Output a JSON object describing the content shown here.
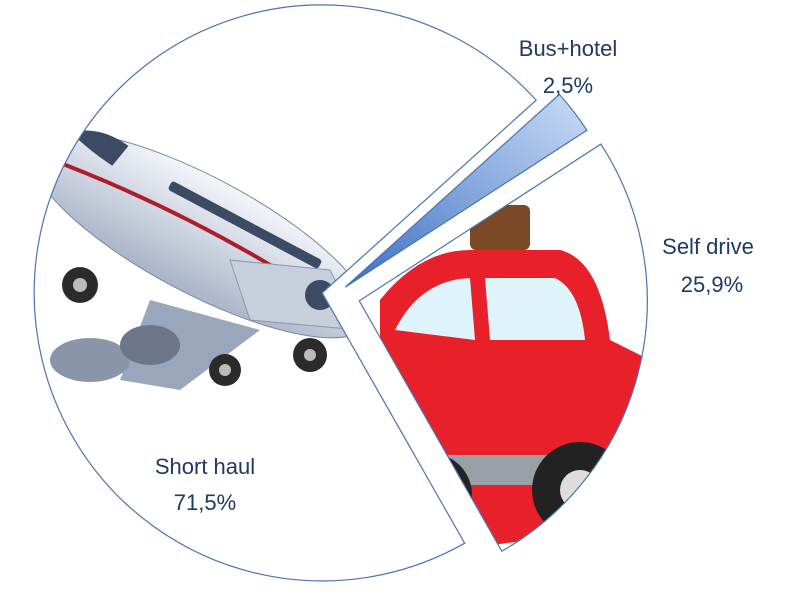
{
  "chart_data": {
    "type": "pie",
    "categories": [
      "Bus+hotel",
      "Self drive",
      "Short haul"
    ],
    "values": [
      2.5,
      25.9,
      71.5
    ],
    "value_labels": [
      "2,5%",
      "25,9%",
      "71,5%"
    ],
    "colors": [
      "#6f9fe0",
      "#ffffff",
      "#ffffff"
    ],
    "stroke": "#4a74b0"
  }
}
